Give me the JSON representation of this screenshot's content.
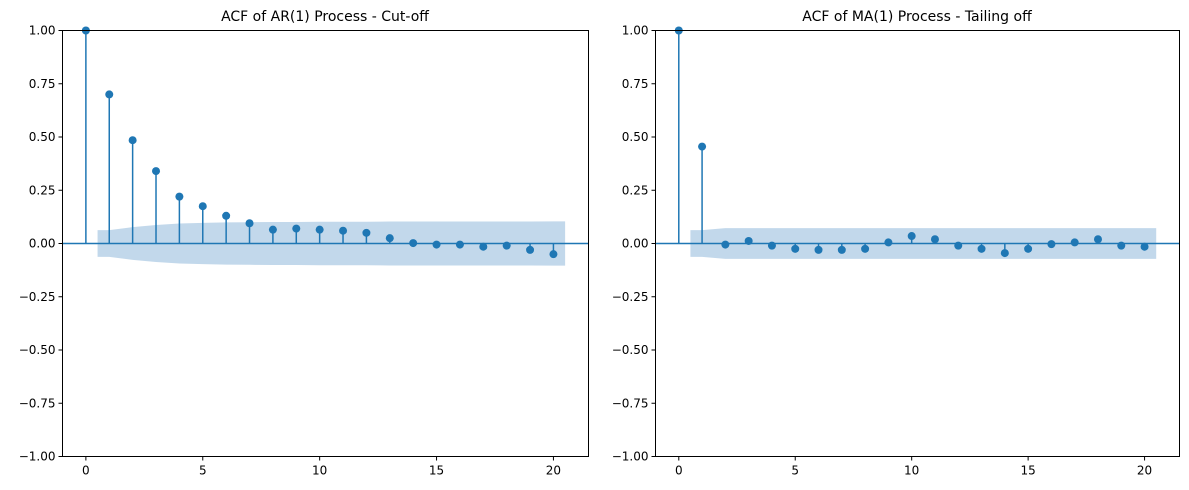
{
  "colors": {
    "series": "#1f77b4",
    "confidence_band": "#aecbe4"
  },
  "chart_data": [
    {
      "type": "scatter",
      "style": "stem",
      "title": "ACF of AR(1) Process - Cut-off",
      "xlabel": "",
      "ylabel": "",
      "xlim": [
        -1,
        21.5
      ],
      "ylim": [
        -1.0,
        1.0
      ],
      "x_ticks": [
        0,
        5,
        10,
        15,
        20
      ],
      "x_tick_labels": [
        "0",
        "5",
        "10",
        "15",
        "20"
      ],
      "y_ticks": [
        -1.0,
        -0.75,
        -0.5,
        -0.25,
        0.0,
        0.25,
        0.5,
        0.75,
        1.0
      ],
      "y_tick_labels": [
        "−1.00",
        "−0.75",
        "−0.50",
        "−0.25",
        "0.00",
        "0.25",
        "0.50",
        "0.75",
        "1.00"
      ],
      "grid": false,
      "lags": [
        0,
        1,
        2,
        3,
        4,
        5,
        6,
        7,
        8,
        9,
        10,
        11,
        12,
        13,
        14,
        15,
        16,
        17,
        18,
        19,
        20
      ],
      "values": [
        1.0,
        0.7,
        0.485,
        0.34,
        0.22,
        0.175,
        0.13,
        0.095,
        0.065,
        0.07,
        0.065,
        0.06,
        0.05,
        0.025,
        0.002,
        -0.005,
        -0.005,
        -0.015,
        -0.01,
        -0.03,
        -0.05
      ],
      "confidence_band": {
        "x": [
          0.5,
          1,
          2,
          3,
          4,
          5,
          6,
          7,
          8,
          9,
          10,
          11,
          12,
          13,
          14,
          15,
          16,
          17,
          18,
          19,
          20,
          20.5
        ],
        "upper": [
          0.063,
          0.063,
          0.077,
          0.087,
          0.094,
          0.097,
          0.099,
          0.1,
          0.101,
          0.101,
          0.102,
          0.102,
          0.102,
          0.103,
          0.103,
          0.103,
          0.103,
          0.103,
          0.103,
          0.103,
          0.104,
          0.104
        ]
      }
    },
    {
      "type": "scatter",
      "style": "stem",
      "title": "ACF of MA(1) Process - Tailing off",
      "xlabel": "",
      "ylabel": "",
      "xlim": [
        -1,
        21.5
      ],
      "ylim": [
        -1.0,
        1.0
      ],
      "x_ticks": [
        0,
        5,
        10,
        15,
        20
      ],
      "x_tick_labels": [
        "0",
        "5",
        "10",
        "15",
        "20"
      ],
      "y_ticks": [
        -1.0,
        -0.75,
        -0.5,
        -0.25,
        0.0,
        0.25,
        0.5,
        0.75,
        1.0
      ],
      "y_tick_labels": [
        "−1.00",
        "−0.75",
        "−0.50",
        "−0.25",
        "0.00",
        "0.25",
        "0.50",
        "0.75",
        "1.00"
      ],
      "grid": false,
      "lags": [
        0,
        1,
        2,
        3,
        4,
        5,
        6,
        7,
        8,
        9,
        10,
        11,
        12,
        13,
        14,
        15,
        16,
        17,
        18,
        19,
        20
      ],
      "values": [
        1.0,
        0.455,
        -0.005,
        0.012,
        -0.01,
        -0.025,
        -0.03,
        -0.03,
        -0.025,
        0.005,
        0.035,
        0.02,
        -0.01,
        -0.025,
        -0.045,
        -0.025,
        -0.003,
        0.005,
        0.02,
        -0.01,
        -0.015
      ],
      "confidence_band": {
        "x": [
          0.5,
          1,
          2,
          3,
          4,
          5,
          6,
          7,
          8,
          9,
          10,
          11,
          12,
          13,
          14,
          15,
          16,
          17,
          18,
          19,
          20,
          20.5
        ],
        "upper": [
          0.063,
          0.063,
          0.072,
          0.072,
          0.072,
          0.072,
          0.072,
          0.072,
          0.072,
          0.072,
          0.072,
          0.072,
          0.072,
          0.072,
          0.072,
          0.072,
          0.072,
          0.072,
          0.072,
          0.072,
          0.072,
          0.072
        ]
      }
    }
  ]
}
